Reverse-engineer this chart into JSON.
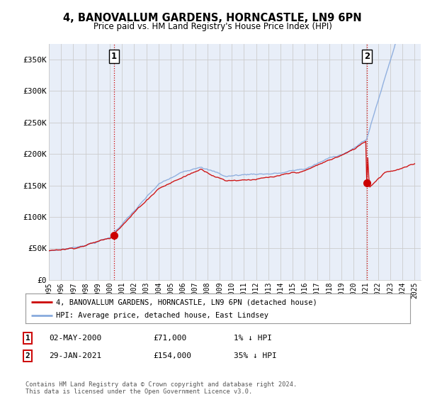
{
  "title": "4, BANOVALLUM GARDENS, HORNCASTLE, LN9 6PN",
  "subtitle": "Price paid vs. HM Land Registry's House Price Index (HPI)",
  "ylabel_ticks": [
    "£0",
    "£50K",
    "£100K",
    "£150K",
    "£200K",
    "£250K",
    "£300K",
    "£350K"
  ],
  "ytick_values": [
    0,
    50000,
    100000,
    150000,
    200000,
    250000,
    300000,
    350000
  ],
  "ylim": [
    0,
    375000
  ],
  "xlim_start": 1995.0,
  "xlim_end": 2025.5,
  "sale1_year": 2000.35,
  "sale1_price": 71000,
  "sale1_label": "1",
  "sale2_year": 2021.08,
  "sale2_price": 154000,
  "sale2_label": "2",
  "color_price": "#cc0000",
  "color_hpi": "#88aadd",
  "color_grid": "#cccccc",
  "color_vline": "#cc0000",
  "legend_entry1": "4, BANOVALLUM GARDENS, HORNCASTLE, LN9 6PN (detached house)",
  "legend_entry2": "HPI: Average price, detached house, East Lindsey",
  "table_row1": [
    "1",
    "02-MAY-2000",
    "£71,000",
    "1% ↓ HPI"
  ],
  "table_row2": [
    "2",
    "29-JAN-2021",
    "£154,000",
    "35% ↓ HPI"
  ],
  "footnote": "Contains HM Land Registry data © Crown copyright and database right 2024.\nThis data is licensed under the Open Government Licence v3.0.",
  "background_color": "#ffffff",
  "plot_bg_color": "#e8eef8"
}
